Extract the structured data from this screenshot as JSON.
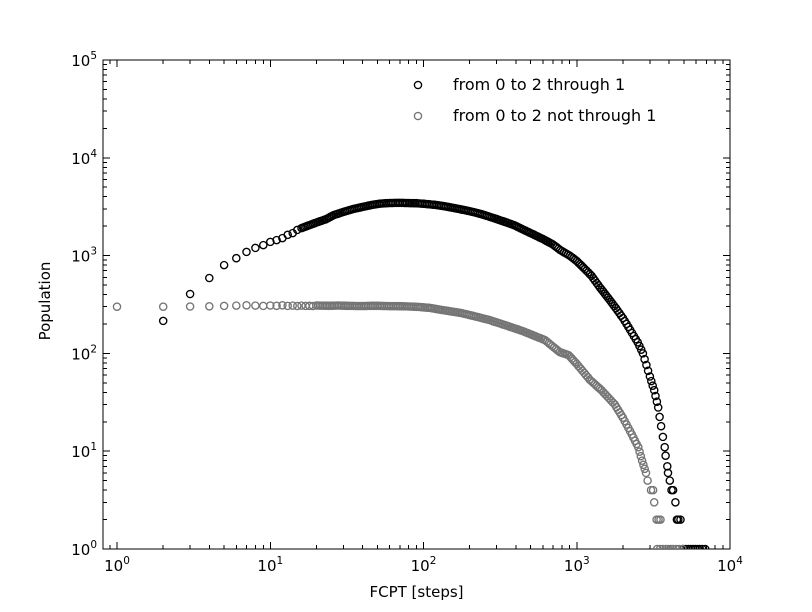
{
  "chart_data": {
    "type": "scatter",
    "xscale": "log",
    "yscale": "log",
    "title": "",
    "xlabel": "FCPT [steps]",
    "ylabel": "Population",
    "xlim": [
      0.81,
      10000
    ],
    "ylim": [
      1,
      100000
    ],
    "xtick_exponents": [
      0,
      1,
      2,
      3,
      4
    ],
    "ytick_exponents": [
      0,
      1,
      2,
      3,
      4,
      5
    ],
    "grid": false,
    "legend_position": "upper-right",
    "legend_frame": false,
    "marker": "open-circle",
    "series": [
      {
        "name": "from 0 to 2 through 1",
        "color": "#000000",
        "head_points": [
          [
            2,
            215
          ],
          [
            3,
            405
          ],
          [
            4,
            590
          ],
          [
            5,
            800
          ],
          [
            6,
            940
          ],
          [
            7,
            1090
          ],
          [
            8,
            1200
          ],
          [
            9,
            1280
          ],
          [
            10,
            1380
          ],
          [
            11,
            1440
          ],
          [
            12,
            1510
          ],
          [
            13,
            1630
          ],
          [
            14,
            1700
          ],
          [
            15,
            1830
          ]
        ],
        "band_anchors": [
          [
            16,
            1910
          ],
          [
            18,
            2050
          ],
          [
            20,
            2180
          ],
          [
            23,
            2350
          ],
          [
            26,
            2600
          ],
          [
            30,
            2800
          ],
          [
            35,
            3000
          ],
          [
            40,
            3150
          ],
          [
            46,
            3300
          ],
          [
            52,
            3400
          ],
          [
            60,
            3450
          ],
          [
            70,
            3460
          ],
          [
            80,
            3450
          ],
          [
            90,
            3430
          ],
          [
            100,
            3390
          ],
          [
            120,
            3300
          ],
          [
            140,
            3180
          ],
          [
            170,
            3000
          ],
          [
            200,
            2850
          ],
          [
            240,
            2650
          ],
          [
            280,
            2450
          ],
          [
            330,
            2250
          ],
          [
            390,
            2050
          ],
          [
            430,
            1900
          ],
          [
            500,
            1700
          ],
          [
            600,
            1480
          ],
          [
            700,
            1300
          ],
          [
            780,
            1140
          ],
          [
            900,
            1000
          ],
          [
            1000,
            880
          ],
          [
            1100,
            760
          ],
          [
            1250,
            620
          ],
          [
            1420,
            470
          ],
          [
            1600,
            370
          ],
          [
            1800,
            290
          ],
          [
            2000,
            230
          ],
          [
            2230,
            174
          ],
          [
            2500,
            130
          ],
          [
            2700,
            100
          ],
          [
            3000,
            58
          ],
          [
            3200,
            42
          ],
          [
            3400,
            28
          ],
          [
            3550,
            18
          ],
          [
            3650,
            14
          ],
          [
            3750,
            11
          ]
        ],
        "tail_points": [
          [
            3800,
            9
          ],
          [
            3900,
            7
          ],
          [
            3940,
            6
          ],
          [
            4050,
            5
          ],
          [
            4150,
            4
          ],
          [
            4250,
            4
          ],
          [
            4400,
            3
          ],
          [
            4500,
            2
          ],
          [
            4600,
            2
          ],
          [
            4750,
            2
          ]
        ],
        "ones_x": [
          4950,
          5150,
          5350,
          5550,
          5750,
          5950,
          6150,
          6350,
          6600,
          6890
        ]
      },
      {
        "name": "from 0 to 2 not through 1",
        "color": "#757575",
        "head_points": [
          [
            1,
            300
          ],
          [
            2,
            300
          ],
          [
            3,
            302
          ],
          [
            4,
            303
          ],
          [
            5,
            306
          ],
          [
            6,
            308
          ],
          [
            7,
            310
          ],
          [
            8,
            308
          ],
          [
            9,
            306
          ],
          [
            10,
            309
          ],
          [
            11,
            307
          ],
          [
            12,
            310
          ],
          [
            13,
            306
          ],
          [
            14,
            308
          ],
          [
            15,
            305
          ],
          [
            16,
            308
          ],
          [
            17,
            306
          ],
          [
            18,
            307
          ],
          [
            19,
            305
          ]
        ],
        "band_anchors": [
          [
            20,
            309
          ],
          [
            24,
            307
          ],
          [
            28,
            309
          ],
          [
            33,
            306
          ],
          [
            40,
            305
          ],
          [
            48,
            307
          ],
          [
            58,
            305
          ],
          [
            70,
            304
          ],
          [
            85,
            301
          ],
          [
            95,
            298
          ],
          [
            110,
            292
          ],
          [
            134,
            277
          ],
          [
            178,
            258
          ],
          [
            220,
            238
          ],
          [
            268,
            220
          ],
          [
            357,
            190
          ],
          [
            445,
            169
          ],
          [
            620,
            137
          ],
          [
            775,
            103
          ],
          [
            885,
            96
          ],
          [
            1000,
            78
          ],
          [
            1215,
            54
          ],
          [
            1450,
            42
          ],
          [
            1770,
            30
          ],
          [
            2000,
            22
          ],
          [
            2230,
            16
          ],
          [
            2520,
            11
          ],
          [
            2670,
            8
          ],
          [
            2830,
            6
          ]
        ],
        "tail_points": [
          [
            2900,
            5
          ],
          [
            3050,
            4
          ],
          [
            3150,
            4
          ],
          [
            3200,
            3
          ],
          [
            3320,
            2
          ],
          [
            3420,
            2
          ],
          [
            3520,
            2
          ]
        ],
        "ones_x": [
          3350,
          3500,
          3650,
          3800,
          3950,
          4100,
          4250,
          4450,
          4650,
          4880
        ]
      }
    ]
  }
}
